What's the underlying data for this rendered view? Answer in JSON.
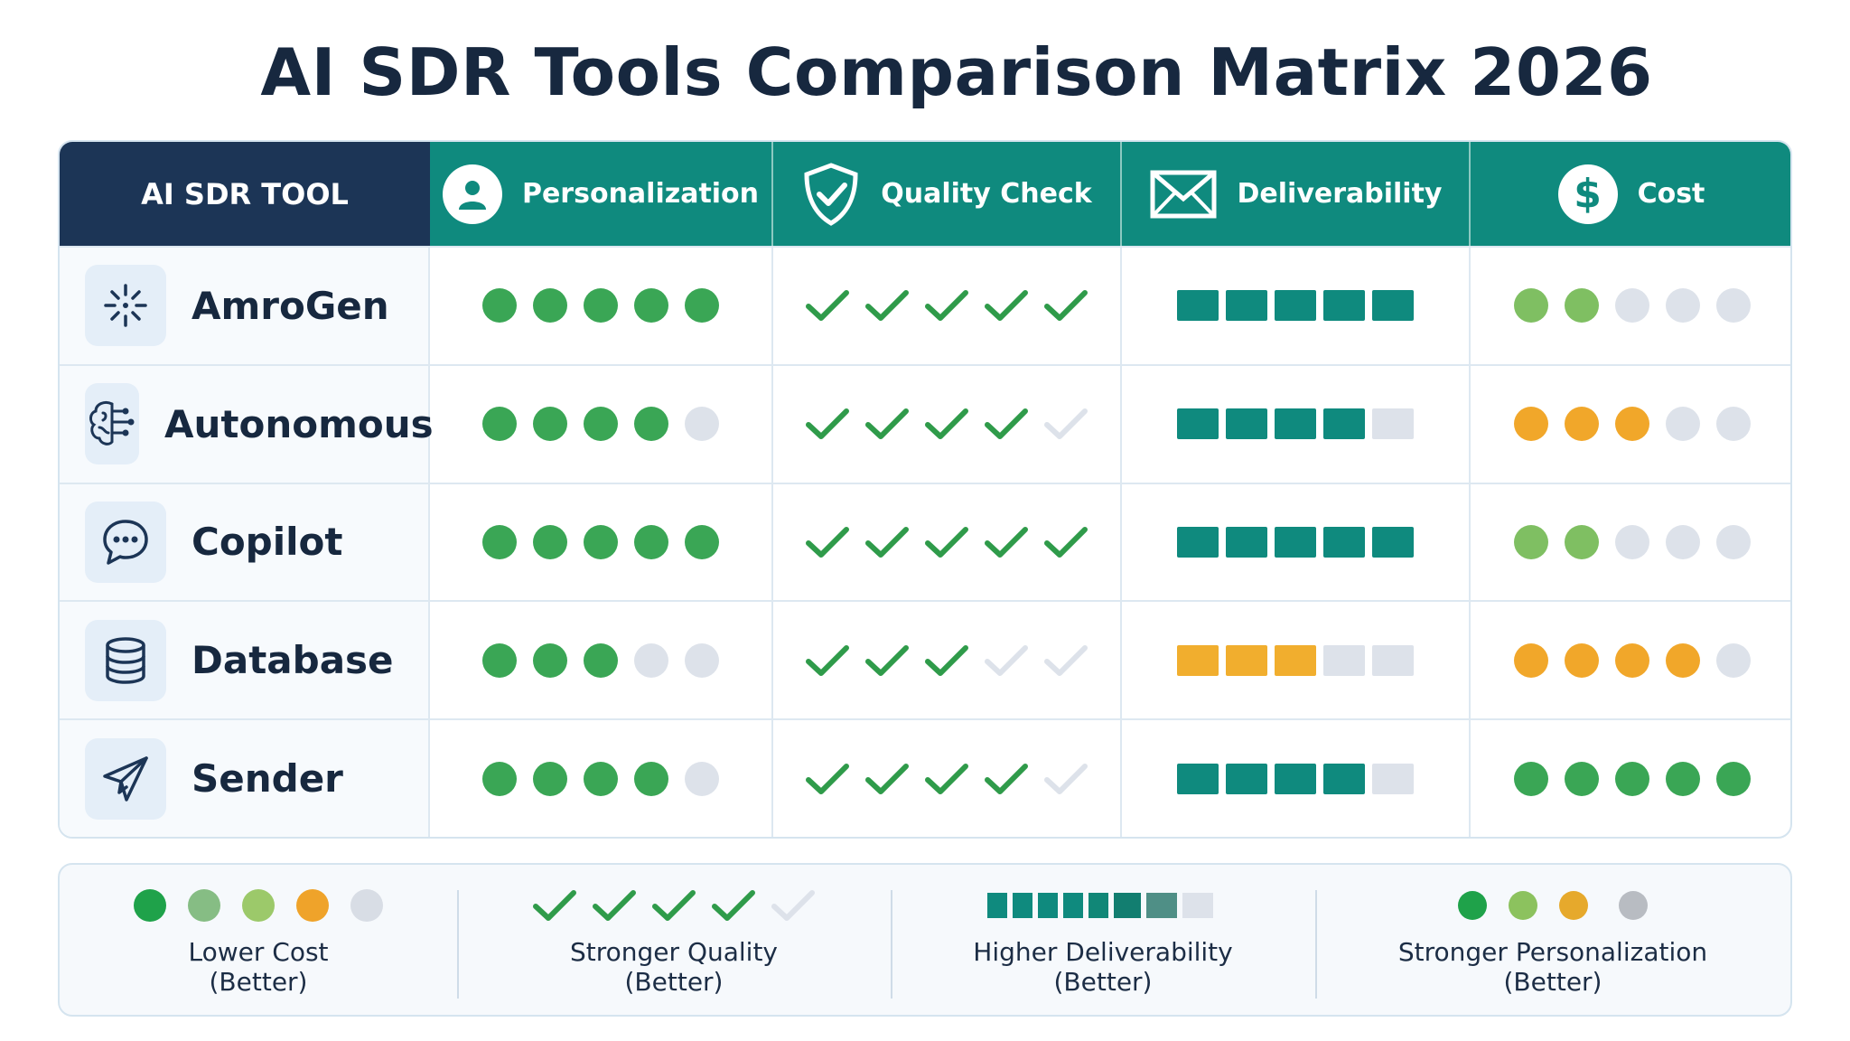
{
  "title": "AI SDR Tools Comparison Matrix 2026",
  "headers": {
    "tool": "AI SDR TOOL",
    "personalization": "Personalization",
    "quality": "Quality Check",
    "deliverability": "Deliverability",
    "cost": "Cost"
  },
  "colors": {
    "header_tool": "#1c3556",
    "header_teal": "#0f8a7e",
    "green": "#3aa655",
    "check_green": "#2f9b4a",
    "light_green": "#7fbf62",
    "orange": "#f1a72a",
    "gray": "#dde2ea",
    "teal_bar": "#0f8a7e",
    "orange_bar": "#f1ae2e"
  },
  "chart_data": {
    "type": "table",
    "title": "AI SDR Tools Comparison Matrix 2026",
    "columns": [
      "Personalization",
      "Quality Check",
      "Deliverability",
      "Cost"
    ],
    "scale_max": 5,
    "rows": [
      {
        "tool": "AmroGen",
        "icon": "sparkle-icon",
        "personalization": 5,
        "quality": 5,
        "deliverability": 5,
        "deliverability_color": "teal",
        "cost": 2,
        "cost_color": "light-green"
      },
      {
        "tool": "Autonomous",
        "icon": "brain-circuit-icon",
        "personalization": 4,
        "quality": 4,
        "deliverability": 4,
        "deliverability_color": "teal",
        "cost": 3,
        "cost_color": "orange"
      },
      {
        "tool": "Copilot",
        "icon": "chat-bubble-icon",
        "personalization": 5,
        "quality": 5,
        "deliverability": 5,
        "deliverability_color": "teal",
        "cost": 2,
        "cost_color": "light-green"
      },
      {
        "tool": "Database",
        "icon": "database-icon",
        "personalization": 3,
        "quality": 3,
        "deliverability": 3,
        "deliverability_color": "orange",
        "cost": 4,
        "cost_color": "orange"
      },
      {
        "tool": "Sender",
        "icon": "paper-plane-icon",
        "personalization": 4,
        "quality": 4,
        "deliverability": 4,
        "deliverability_color": "teal",
        "cost": 5,
        "cost_color": "green"
      }
    ]
  },
  "legend": {
    "cost": {
      "line1": "Lower Cost",
      "line2": "(Better)"
    },
    "quality": {
      "line1": "Stronger Quality",
      "line2": "(Better)"
    },
    "deliverability": {
      "line1": "Higher Deliverability",
      "line2": "(Better)"
    },
    "personalization": {
      "line1": "Stronger Personalization",
      "line2": "(Better)"
    }
  }
}
